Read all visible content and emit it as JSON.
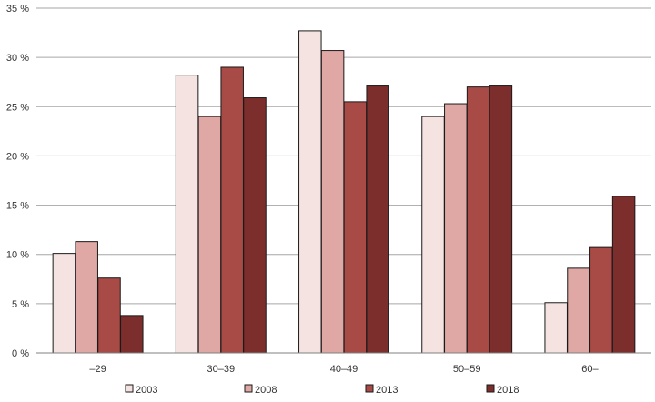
{
  "chart_data": {
    "type": "bar",
    "title": "",
    "xlabel": "",
    "ylabel": "",
    "categories": [
      "–29",
      "30–39",
      "40–49",
      "50–59",
      "60–"
    ],
    "series": [
      {
        "name": "2003",
        "values": [
          10.1,
          28.2,
          32.7,
          24.0,
          5.1
        ],
        "color": "#f5e3e1"
      },
      {
        "name": "2008",
        "values": [
          11.3,
          24.0,
          30.7,
          25.3,
          8.6
        ],
        "color": "#e0a8a4"
      },
      {
        "name": "2013",
        "values": [
          7.6,
          29.0,
          25.5,
          27.0,
          10.7
        ],
        "color": "#a84a45"
      },
      {
        "name": "2018",
        "values": [
          3.8,
          25.9,
          27.1,
          27.1,
          15.9
        ],
        "color": "#7b2e2b"
      }
    ],
    "ylim": [
      0,
      35
    ],
    "yticks": [
      0,
      5,
      10,
      15,
      20,
      25,
      30,
      35
    ],
    "ytick_labels": [
      "0 %",
      "5 %",
      "10 %",
      "15 %",
      "20 %",
      "25 %",
      "30 %",
      "35 %"
    ],
    "grid": "horizontal",
    "legend_position": "bottom"
  }
}
